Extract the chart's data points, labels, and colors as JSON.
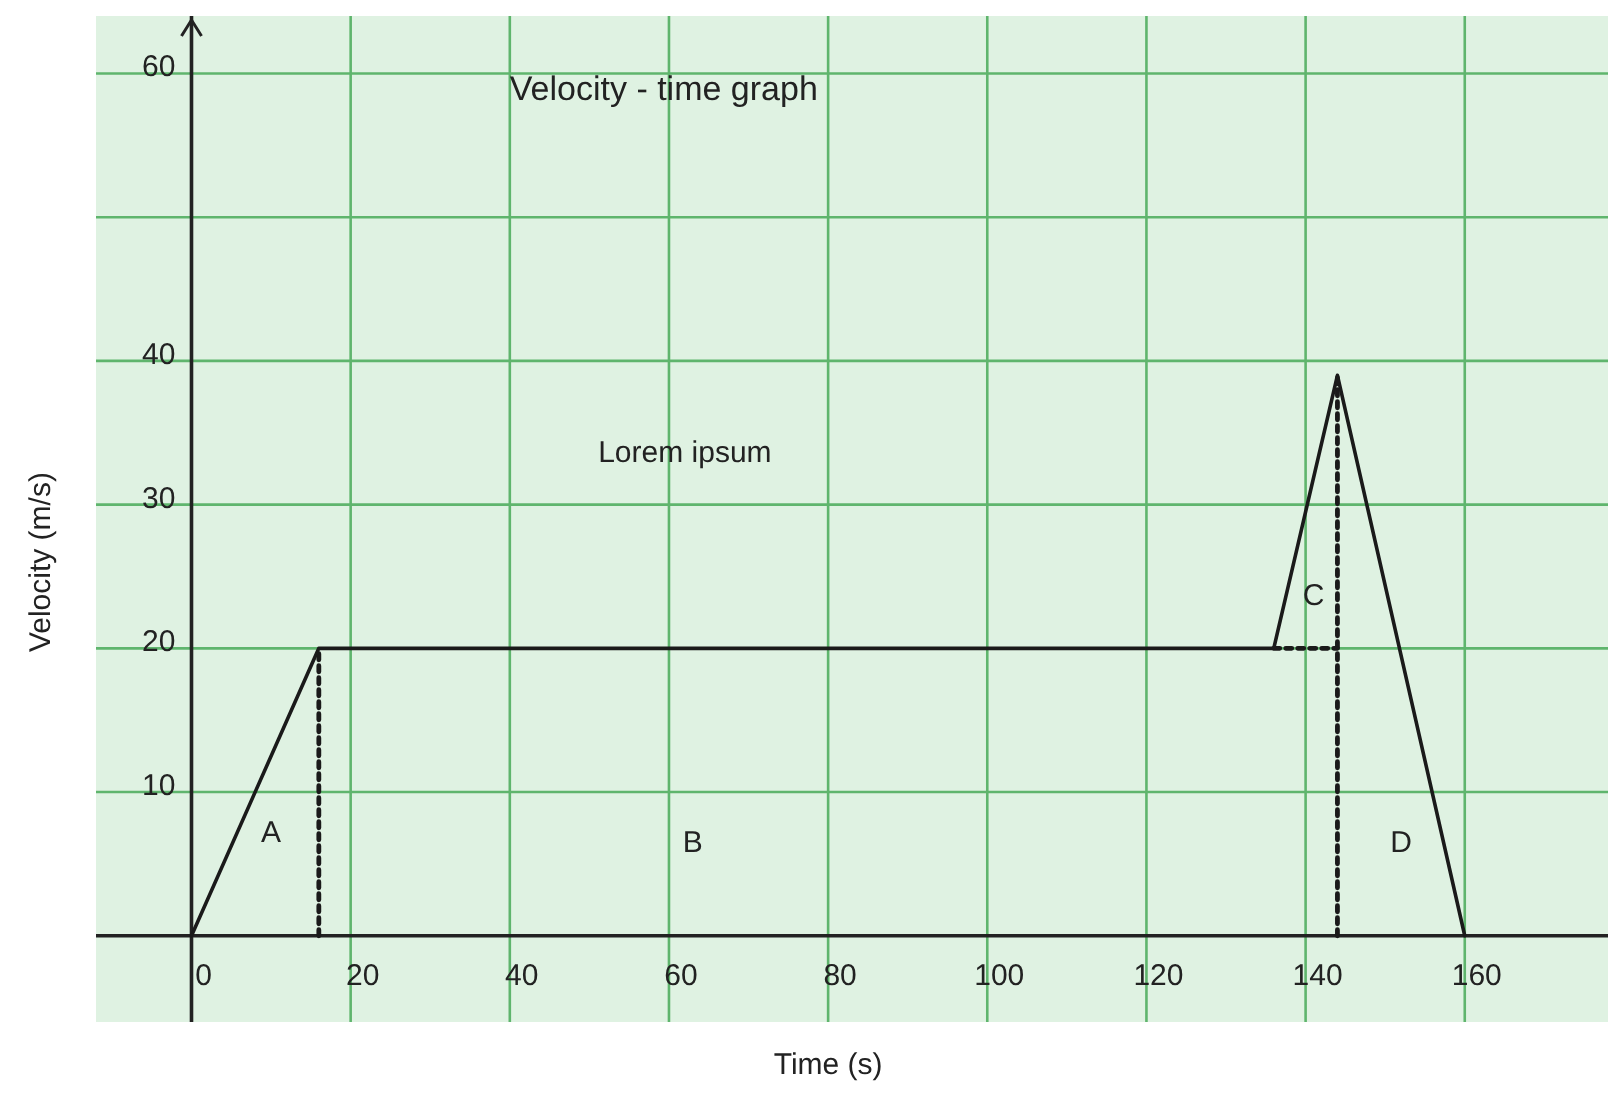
{
  "chart_data": {
    "type": "line",
    "title": "Velocity - time graph",
    "xlabel": "Time (s)",
    "ylabel": "Velocity (m/s)",
    "xlim": [
      -12,
      178
    ],
    "ylim": [
      -6,
      64
    ],
    "xticks": [
      0,
      20,
      40,
      60,
      80,
      100,
      120,
      140,
      160
    ],
    "yticks": [
      10,
      20,
      30,
      40,
      {
        "value": 50,
        "label": null
      },
      60
    ],
    "grid": true,
    "marker": "none",
    "series": [
      {
        "color": "#1a1a1a",
        "x": [
          0,
          16,
          136,
          144,
          160
        ],
        "values": [
          0,
          20,
          20,
          39,
          0
        ],
        "line_style": "solid"
      },
      {
        "color": "#1a1a1a",
        "x": [
          16,
          16
        ],
        "values": [
          0,
          20
        ],
        "line_style": "dotted"
      },
      {
        "color": "#1a1a1a",
        "x": [
          144,
          144
        ],
        "values": [
          0,
          39
        ],
        "line_style": "dotted"
      },
      {
        "color": "#1a1a1a",
        "x": [
          136,
          144
        ],
        "values": [
          20,
          20
        ],
        "line_style": "dotted"
      }
    ],
    "annotations": [
      "Lorem ipsum",
      "A",
      "B",
      "C",
      "D"
    ]
  }
}
